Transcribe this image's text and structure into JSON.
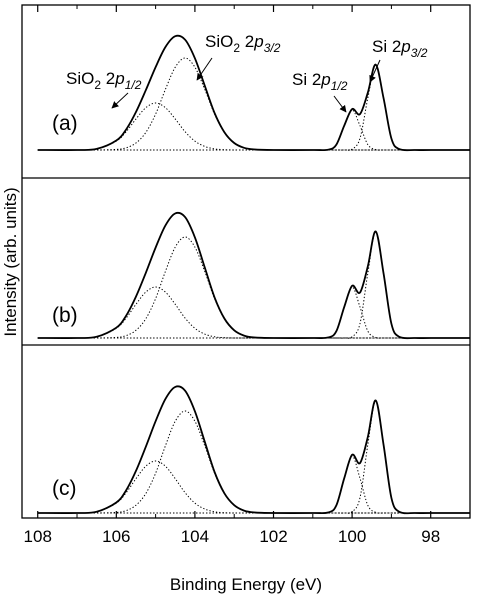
{
  "chart_data": [
    {
      "type": "line",
      "label": "(a)",
      "x": [
        108,
        107,
        106.5,
        106,
        105.75,
        105.5,
        105.25,
        105,
        104.75,
        104.5,
        104.25,
        104,
        103.75,
        103.5,
        103.25,
        103,
        102.75,
        102.5,
        102,
        101,
        100.6,
        100.4,
        100.2,
        100,
        99.8,
        99.6,
        99.4,
        99.2,
        99,
        98.8,
        98.4,
        98,
        97
      ],
      "ylim": [
        -28,
        145
      ],
      "series": [
        {
          "color": "#000000",
          "linestyle": "solid",
          "values": [
            0,
            0,
            1.1,
            9.5,
            20.5,
            38,
            59.8,
            82.9,
            103,
            113.8,
            110.3,
            91.7,
            64.3,
            37,
            17.8,
            7,
            2.2,
            0.6,
            0,
            0,
            0.4,
            5.4,
            24.4,
            40.9,
            35.9,
            57.3,
            85.4,
            51.9,
            11.5,
            0.9,
            0,
            0,
            0
          ]
        },
        {
          "color": "#000000",
          "linestyle": "dotted",
          "values": [
            0,
            0,
            1.1,
            8.9,
            18.3,
            31,
            42.3,
            47,
            42.3,
            31,
            18.3,
            8.9,
            3.6,
            1.1,
            0.3,
            0,
            0,
            0,
            0,
            0,
            0,
            0,
            0,
            0,
            0,
            0,
            0,
            0,
            0,
            0,
            0,
            0,
            0
          ]
        },
        {
          "color": "#000000",
          "linestyle": "dotted",
          "values": [
            0,
            0,
            0,
            0.6,
            2.2,
            7,
            17.5,
            35.9,
            60.7,
            82.8,
            92,
            82.8,
            60.7,
            35.9,
            17.5,
            7,
            2.2,
            0.6,
            0,
            0,
            0,
            0,
            0,
            0,
            0,
            0,
            0,
            0,
            0,
            0,
            0,
            0,
            0
          ]
        },
        {
          "color": "#000000",
          "linestyle": "dotted",
          "values": [
            0,
            0,
            0,
            0,
            0,
            0,
            0,
            0,
            0,
            0,
            0,
            0,
            0,
            0,
            0,
            0,
            0,
            0,
            0,
            0,
            0.4,
            5.4,
            24.4,
            40,
            24.4,
            5.4,
            0.4,
            0,
            0,
            0,
            0,
            0,
            0
          ]
        },
        {
          "color": "#000000",
          "linestyle": "dotted",
          "values": [
            0,
            0,
            0,
            0,
            0,
            0,
            0,
            0,
            0,
            0,
            0,
            0,
            0,
            0,
            0,
            0,
            0,
            0,
            0,
            0,
            0,
            0,
            0,
            0.9,
            11.5,
            51.9,
            85,
            51.9,
            11.5,
            0.9,
            0,
            0,
            0
          ]
        }
      ],
      "annotations": [
        {
          "parts": [
            "SiO",
            "2",
            " 2",
            "p",
            "1/2"
          ]
        },
        {
          "parts": [
            "SiO",
            "2",
            " 2",
            "p",
            "3/2"
          ]
        },
        {
          "parts": [
            "Si 2",
            "p",
            "1/2"
          ]
        },
        {
          "parts": [
            "Si 2",
            "p",
            "3/2"
          ]
        }
      ]
    },
    {
      "type": "line",
      "label": "(b)",
      "x": [
        108,
        107,
        106.5,
        106,
        105.75,
        105.5,
        105.25,
        105,
        104.75,
        104.5,
        104.25,
        104,
        103.75,
        103.5,
        103.25,
        103,
        102.75,
        102.5,
        102,
        101,
        100.6,
        100.4,
        100.2,
        100,
        99.8,
        99.6,
        99.4,
        99.2,
        99,
        98.8,
        98.4,
        98,
        97
      ],
      "ylim": [
        -7,
        160
      ],
      "ylabel": "Intensity (arb. units)",
      "series": [
        {
          "color": "#000000",
          "linestyle": "solid",
          "values": [
            0,
            0,
            1.2,
            10.3,
            22.3,
            41.4,
            65.1,
            90.4,
            112.6,
            124.6,
            120.9,
            100.6,
            70.6,
            40.6,
            19.5,
            7.7,
            2.4,
            0.6,
            0,
            0,
            0.6,
            6.9,
            31.1,
            52.2,
            45.4,
            71.6,
            106.6,
            64.7,
            14.3,
            1.2,
            0,
            0,
            0
          ]
        },
        {
          "color": "#000000",
          "linestyle": "dotted",
          "values": [
            0,
            0,
            1.2,
            9.7,
            19.9,
            33.7,
            45.9,
            51,
            45.9,
            33.7,
            19.9,
            9.7,
            3.9,
            1.2,
            0.3,
            0,
            0,
            0,
            0,
            0,
            0,
            0,
            0,
            0,
            0,
            0,
            0,
            0,
            0,
            0,
            0,
            0,
            0
          ]
        },
        {
          "color": "#000000",
          "linestyle": "dotted",
          "values": [
            0,
            0,
            0,
            0.6,
            2.4,
            7.7,
            19.2,
            39.4,
            66.7,
            90.9,
            101,
            90.9,
            66.7,
            39.4,
            19.2,
            7.7,
            2.4,
            0.6,
            0,
            0,
            0,
            0,
            0,
            0,
            0,
            0,
            0,
            0,
            0,
            0,
            0,
            0,
            0
          ]
        },
        {
          "color": "#000000",
          "linestyle": "dotted",
          "values": [
            0,
            0,
            0,
            0,
            0,
            0,
            0,
            0,
            0,
            0,
            0,
            0,
            0,
            0,
            0,
            0,
            0,
            0,
            0,
            0,
            0.6,
            6.9,
            31.1,
            51,
            31.1,
            6.9,
            0.6,
            0,
            0,
            0,
            0,
            0,
            0
          ]
        },
        {
          "color": "#000000",
          "linestyle": "dotted",
          "values": [
            0,
            0,
            0,
            0,
            0,
            0,
            0,
            0,
            0,
            0,
            0,
            0,
            0,
            0,
            0,
            0,
            0,
            0,
            0,
            0,
            0,
            0,
            0,
            1.2,
            14.3,
            64.7,
            106,
            64.7,
            14.3,
            1.2,
            0,
            0,
            0
          ]
        }
      ]
    },
    {
      "type": "line",
      "label": "(c)",
      "x": [
        108,
        107,
        106.5,
        106,
        105.75,
        105.5,
        105.25,
        105,
        104.75,
        104.5,
        104.25,
        104,
        103.75,
        103.5,
        103.25,
        103,
        102.75,
        102.5,
        102,
        101,
        100.6,
        100.4,
        100.2,
        100,
        99.8,
        99.6,
        99.4,
        99.2,
        99,
        98.8,
        98.4,
        98,
        97
      ],
      "ylim": [
        -5,
        168
      ],
      "xlim": [
        108.4,
        97
      ],
      "xticks": [
        108,
        106,
        104,
        102,
        100,
        98
      ],
      "xminorticks": [
        107,
        105,
        103,
        101,
        99
      ],
      "xlabel": "Binding Energy (eV)",
      "series": [
        {
          "color": "#000000",
          "linestyle": "solid",
          "values": [
            0,
            0,
            1.2,
            10.5,
            22.7,
            42.1,
            66.2,
            91.8,
            114.1,
            126.1,
            122.3,
            101.7,
            71.3,
            41,
            19.7,
            7.8,
            2.4,
            0.6,
            0,
            0,
            0.6,
            7.7,
            34.8,
            58.2,
            49.9,
            76,
            112.6,
            68.3,
            15.1,
            1.2,
            0,
            0,
            0
          ]
        },
        {
          "color": "#000000",
          "linestyle": "dotted",
          "values": [
            0,
            0,
            1.2,
            9.9,
            20.3,
            34.3,
            46.8,
            52,
            46.8,
            34.3,
            20.3,
            9.9,
            4,
            1.2,
            0.3,
            0,
            0,
            0,
            0,
            0,
            0,
            0,
            0,
            0,
            0,
            0,
            0,
            0,
            0,
            0,
            0,
            0,
            0
          ]
        },
        {
          "color": "#000000",
          "linestyle": "dotted",
          "values": [
            0,
            0,
            0,
            0.6,
            2.4,
            7.8,
            19.4,
            39.8,
            67.3,
            91.8,
            102,
            91.8,
            67.3,
            39.8,
            19.4,
            7.8,
            2.4,
            0.6,
            0,
            0,
            0,
            0,
            0,
            0,
            0,
            0,
            0,
            0,
            0,
            0,
            0,
            0,
            0
          ]
        },
        {
          "color": "#000000",
          "linestyle": "dotted",
          "values": [
            0,
            0,
            0,
            0,
            0,
            0,
            0,
            0,
            0,
            0,
            0,
            0,
            0,
            0,
            0,
            0,
            0,
            0,
            0,
            0,
            0.6,
            7.7,
            34.8,
            57,
            34.8,
            7.7,
            0.6,
            0,
            0,
            0,
            0,
            0,
            0
          ]
        },
        {
          "color": "#000000",
          "linestyle": "dotted",
          "values": [
            0,
            0,
            0,
            0,
            0,
            0,
            0,
            0,
            0,
            0,
            0,
            0,
            0,
            0,
            0,
            0,
            0,
            0,
            0,
            0,
            0,
            0,
            0,
            1.2,
            15.1,
            68.3,
            112,
            68.3,
            15.1,
            1.2,
            0,
            0,
            0
          ]
        }
      ]
    }
  ]
}
